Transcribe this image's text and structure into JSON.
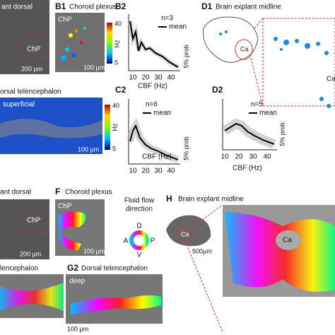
{
  "panels": {
    "A": {
      "title": "ant dorsal",
      "roi": "ChP",
      "scale": "200 µm"
    },
    "B1": {
      "label": "B1",
      "title": "Choroid plexus",
      "roi": "ChP",
      "cbar_max": "40",
      "cbar_unit": "Hz",
      "cbar_min": "5",
      "scale": "100 µm"
    },
    "B2": {
      "label": "B2",
      "n": "n=3",
      "legend": "mean",
      "ylabel": "5% prob",
      "xticks": [
        "10",
        "20",
        "30",
        "40"
      ],
      "xlabel": "CBF (Hz)"
    },
    "C1": {
      "title": "orsal telencephalon",
      "layer": "superficial",
      "cbar_max": "40",
      "cbar_unit": "Hz",
      "cbar_min": "5",
      "scale": "100 µm"
    },
    "C2": {
      "label": "C2",
      "n": "n=6",
      "legend": "mean",
      "ylabel": "5% prob",
      "xticks": [
        "10",
        "20",
        "30",
        "40"
      ],
      "xlabel": "CBF (Hz)"
    },
    "D1": {
      "label": "D1",
      "title": "Brain explant midline",
      "region": "Ca",
      "region_zoom": "Ca"
    },
    "D2": {
      "label": "D2",
      "n": "n=5",
      "legend": "mean",
      "ylabel": "5% prob",
      "xticks": [
        "10",
        "20",
        "30",
        "40"
      ],
      "xlabel": "CBF (Hz)"
    },
    "E": {
      "title": "ant dorsal",
      "roi": "ChP",
      "scale": "200 µm"
    },
    "F": {
      "label": "F",
      "title": "Choroid plexus",
      "roi": "ChP",
      "scale": "100 µm"
    },
    "wheel": {
      "title1": "Fluid flow",
      "title2": "direction",
      "D": "D",
      "A": "A",
      "P": "P",
      "V": "V"
    },
    "H": {
      "label": "H",
      "title": "Brain explant midline",
      "region": "Ca",
      "scale": "500µm",
      "region_zoom": "Ca"
    },
    "G1": {
      "title": "lencephalon"
    },
    "G2": {
      "label": "G2",
      "title": "Dorsal telencephalon",
      "layer": "deep",
      "scale": "100 µm"
    }
  }
}
